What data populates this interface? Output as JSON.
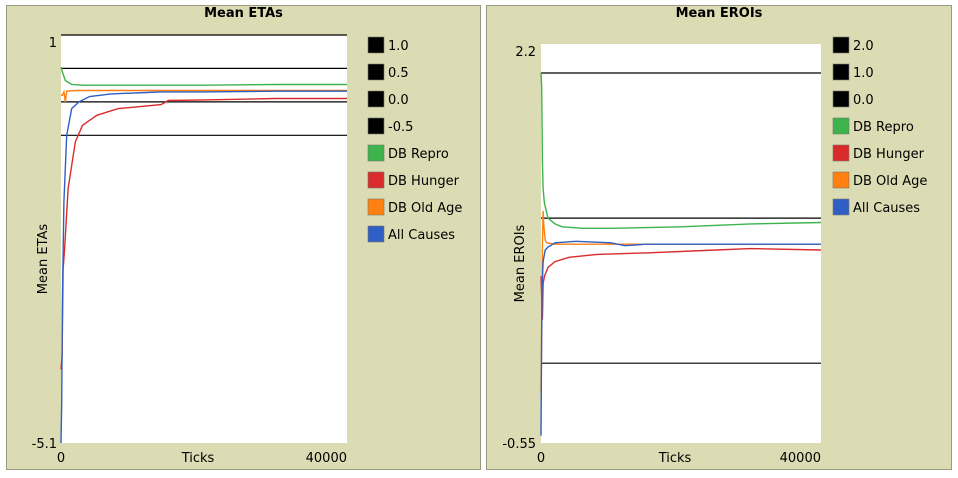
{
  "panels": [
    {
      "title": "Mean ETAs",
      "plot_bg": "#ffffff",
      "panel_bg": "#dcdcb4"
    },
    {
      "title": "Mean EROIs",
      "plot_bg": "#ffffff",
      "panel_bg": "#dcdcb4"
    }
  ],
  "chart_data": [
    {
      "type": "line",
      "title": "Mean ETAs",
      "xlabel": "Ticks",
      "ylabel": "Mean ETAs",
      "xlim": [
        0,
        40000
      ],
      "ylim": [
        -5.1,
        1
      ],
      "x_ticks": [
        "0",
        "40000"
      ],
      "y_ticks": [
        "1",
        "-5.1"
      ],
      "grid": false,
      "legend_position": "right",
      "series": [
        {
          "name": "1.0",
          "color": "#000000",
          "points": [
            [
              0,
              1.0
            ],
            [
              40000,
              1.0
            ]
          ]
        },
        {
          "name": "0.5",
          "color": "#000000",
          "points": [
            [
              0,
              0.5
            ],
            [
              40000,
              0.5
            ]
          ]
        },
        {
          "name": "0.0",
          "color": "#000000",
          "points": [
            [
              0,
              0.0
            ],
            [
              40000,
              0.0
            ]
          ]
        },
        {
          "name": "-0.5",
          "color": "#000000",
          "points": [
            [
              0,
              -0.5
            ],
            [
              40000,
              -0.5
            ]
          ]
        },
        {
          "name": "DB Repro",
          "color": "#3cb44b",
          "points": [
            [
              0,
              0.52
            ],
            [
              200,
              0.45
            ],
            [
              600,
              0.32
            ],
            [
              1500,
              0.26
            ],
            [
              3000,
              0.25
            ],
            [
              10000,
              0.25
            ],
            [
              20000,
              0.25
            ],
            [
              30000,
              0.26
            ],
            [
              40000,
              0.26
            ]
          ]
        },
        {
          "name": "DB Hunger",
          "color": "#d92b2b",
          "points": [
            [
              0,
              -4.0
            ],
            [
              150,
              -3.8
            ],
            [
              300,
              -2.5
            ],
            [
              500,
              -2.2
            ],
            [
              1000,
              -1.3
            ],
            [
              2000,
              -0.6
            ],
            [
              3000,
              -0.35
            ],
            [
              5000,
              -0.2
            ],
            [
              8000,
              -0.1
            ],
            [
              12000,
              -0.06
            ],
            [
              14000,
              -0.04
            ],
            [
              15000,
              0.02
            ],
            [
              20000,
              0.03
            ],
            [
              30000,
              0.05
            ],
            [
              40000,
              0.05
            ]
          ]
        },
        {
          "name": "DB Old Age",
          "color": "#ff7f11",
          "points": [
            [
              0,
              0.1
            ],
            [
              200,
              0.1
            ],
            [
              400,
              0.15
            ],
            [
              600,
              0.0
            ],
            [
              800,
              0.16
            ],
            [
              2000,
              0.17
            ],
            [
              10000,
              0.17
            ],
            [
              40000,
              0.17
            ]
          ]
        },
        {
          "name": "All Causes",
          "color": "#2f5fc4",
          "points": [
            [
              0,
              -5.1
            ],
            [
              100,
              -4.5
            ],
            [
              200,
              -3.0
            ],
            [
              400,
              -1.5
            ],
            [
              800,
              -0.5
            ],
            [
              1500,
              -0.1
            ],
            [
              2500,
              0.0
            ],
            [
              4000,
              0.08
            ],
            [
              7000,
              0.12
            ],
            [
              12000,
              0.14
            ],
            [
              14000,
              0.15
            ],
            [
              20000,
              0.15
            ],
            [
              30000,
              0.16
            ],
            [
              40000,
              0.16
            ]
          ]
        }
      ]
    },
    {
      "type": "line",
      "title": "Mean EROIs",
      "xlabel": "Ticks",
      "ylabel": "Mean EROIs",
      "xlim": [
        0,
        40000
      ],
      "ylim": [
        -0.55,
        2.2
      ],
      "x_ticks": [
        "0",
        "40000"
      ],
      "y_ticks": [
        "2.2",
        "-0.55"
      ],
      "grid": false,
      "legend_position": "right",
      "series": [
        {
          "name": "2.0",
          "color": "#000000",
          "points": [
            [
              0,
              2.0
            ],
            [
              40000,
              2.0
            ]
          ]
        },
        {
          "name": "1.0",
          "color": "#000000",
          "points": [
            [
              0,
              1.0
            ],
            [
              40000,
              1.0
            ]
          ]
        },
        {
          "name": "0.0",
          "color": "#000000",
          "points": [
            [
              0,
              0.0
            ],
            [
              40000,
              0.0
            ]
          ]
        },
        {
          "name": "DB Repro",
          "color": "#3cb44b",
          "points": [
            [
              0,
              2.0
            ],
            [
              100,
              1.9
            ],
            [
              200,
              1.4
            ],
            [
              300,
              1.2
            ],
            [
              500,
              1.1
            ],
            [
              1000,
              1.0
            ],
            [
              2000,
              0.96
            ],
            [
              3000,
              0.94
            ],
            [
              6000,
              0.93
            ],
            [
              10000,
              0.93
            ],
            [
              20000,
              0.94
            ],
            [
              30000,
              0.96
            ],
            [
              40000,
              0.97
            ]
          ]
        },
        {
          "name": "DB Hunger",
          "color": "#d92b2b",
          "points": [
            [
              0,
              0.6
            ],
            [
              200,
              0.3
            ],
            [
              300,
              0.55
            ],
            [
              500,
              0.6
            ],
            [
              1000,
              0.66
            ],
            [
              2000,
              0.7
            ],
            [
              4000,
              0.73
            ],
            [
              8000,
              0.75
            ],
            [
              15000,
              0.76
            ],
            [
              25000,
              0.78
            ],
            [
              30000,
              0.79
            ],
            [
              40000,
              0.78
            ]
          ]
        },
        {
          "name": "DB Old Age",
          "color": "#ff7f11",
          "points": [
            [
              0,
              -0.2
            ],
            [
              200,
              0.8
            ],
            [
              300,
              1.05
            ],
            [
              400,
              0.95
            ],
            [
              600,
              0.85
            ],
            [
              800,
              0.83
            ],
            [
              2000,
              0.82
            ],
            [
              10000,
              0.82
            ],
            [
              40000,
              0.82
            ]
          ]
        },
        {
          "name": "All Causes",
          "color": "#2f5fc4",
          "points": [
            [
              0,
              -0.5
            ],
            [
              150,
              0.5
            ],
            [
              300,
              0.7
            ],
            [
              600,
              0.78
            ],
            [
              1000,
              0.8
            ],
            [
              2000,
              0.83
            ],
            [
              5000,
              0.84
            ],
            [
              10000,
              0.83
            ],
            [
              12000,
              0.81
            ],
            [
              15000,
              0.82
            ],
            [
              20000,
              0.82
            ],
            [
              30000,
              0.82
            ],
            [
              40000,
              0.82
            ]
          ]
        }
      ]
    }
  ]
}
